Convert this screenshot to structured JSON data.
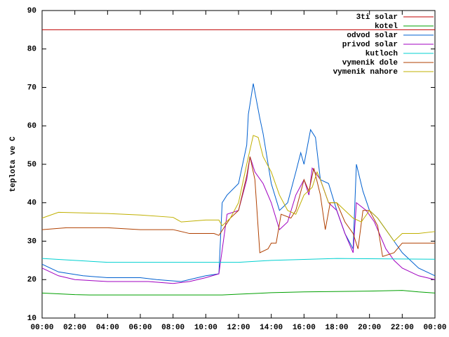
{
  "chart_data": {
    "type": "line",
    "ylabel": "teplota ve C",
    "xlim": [
      0,
      24
    ],
    "ylim": [
      10,
      90
    ],
    "yticks": [
      10,
      20,
      30,
      40,
      50,
      60,
      70,
      80,
      90
    ],
    "xticks": [
      {
        "value": 0,
        "label": "00:00"
      },
      {
        "value": 2,
        "label": "02:00"
      },
      {
        "value": 4,
        "label": "04:00"
      },
      {
        "value": 6,
        "label": "06:00"
      },
      {
        "value": 8,
        "label": "08:00"
      },
      {
        "value": 10,
        "label": "10:00"
      },
      {
        "value": 12,
        "label": "12:00"
      },
      {
        "value": 14,
        "label": "14:00"
      },
      {
        "value": 16,
        "label": "16:00"
      },
      {
        "value": 18,
        "label": "18:00"
      },
      {
        "value": 20,
        "label": "20:00"
      },
      {
        "value": 22,
        "label": "22:00"
      },
      {
        "value": 24,
        "label": "00:00"
      }
    ],
    "legend": "top-right",
    "series": [
      {
        "name": "3ti solar",
        "color": "#c00000",
        "x": [
          0,
          24
        ],
        "values": [
          85,
          85
        ]
      },
      {
        "name": "kotel",
        "color": "#00a000",
        "x": [
          0,
          1,
          2,
          3,
          11,
          12,
          13,
          14,
          16,
          20,
          22,
          23,
          24
        ],
        "values": [
          16.5,
          16.3,
          16.1,
          16,
          16,
          16.2,
          16.4,
          16.6,
          16.8,
          17,
          17.2,
          16.8,
          16.5
        ]
      },
      {
        "name": "odvod solar",
        "color": "#0060d0",
        "x": [
          0,
          1,
          2.5,
          4,
          6,
          7,
          8.5,
          9,
          10,
          10.8,
          11,
          11.3,
          12,
          12.5,
          12.6,
          12.9,
          13.3,
          13.5,
          14,
          14.5,
          15,
          15.5,
          15.8,
          16,
          16.4,
          16.7,
          17,
          17.5,
          18,
          18.5,
          19,
          19.2,
          19.6,
          20,
          20.5,
          21,
          21.5,
          22,
          23,
          24
        ],
        "values": [
          24,
          22,
          21,
          20.5,
          20.5,
          20,
          19.5,
          20,
          21,
          21.5,
          40,
          42,
          45,
          55,
          63,
          71,
          62,
          58,
          45,
          38,
          40,
          48,
          53,
          50,
          59,
          57,
          46,
          45,
          38,
          32,
          28,
          50,
          43,
          38,
          36,
          33,
          30,
          27,
          23,
          21
        ]
      },
      {
        "name": "privod solar",
        "color": "#a000c0",
        "x": [
          0,
          1,
          2,
          4,
          6.5,
          8,
          9,
          10,
          10.8,
          11.3,
          12,
          12.5,
          12.7,
          13,
          13.5,
          14,
          14.5,
          15,
          15.5,
          16,
          16.3,
          16.5,
          17,
          17.5,
          18,
          18.5,
          19,
          19.2,
          19.8,
          20.3,
          21,
          21.5,
          22,
          23,
          24
        ],
        "values": [
          23,
          21,
          20,
          19.5,
          19.5,
          19,
          19.5,
          20.5,
          21.5,
          37,
          38,
          46,
          52,
          48,
          45,
          40,
          33,
          35,
          42,
          46,
          42,
          49,
          46,
          40,
          38,
          32,
          27,
          40,
          38,
          35,
          28,
          25,
          23,
          21,
          20
        ]
      },
      {
        "name": "kutloch",
        "color": "#00d0d0",
        "x": [
          0,
          2,
          4,
          8,
          12,
          14,
          18,
          24
        ],
        "values": [
          25.5,
          25,
          24.5,
          24.5,
          24.5,
          25,
          25.5,
          25.3
        ]
      },
      {
        "name": "vymenik dole",
        "color": "#b04000",
        "x": [
          0,
          1.5,
          4,
          6,
          8,
          9,
          10.5,
          10.8,
          11.5,
          12,
          12.5,
          12.7,
          13,
          13.3,
          13.8,
          14,
          14.3,
          14.6,
          15.2,
          15.5,
          16,
          16.3,
          16.6,
          17,
          17.3,
          17.6,
          18,
          18.5,
          19,
          19.3,
          19.6,
          20,
          20.5,
          20.8,
          21.5,
          22,
          24
        ],
        "values": [
          33,
          33.5,
          33.5,
          33,
          33,
          32,
          32,
          31.5,
          36,
          38,
          47,
          52,
          46,
          27,
          28,
          29.5,
          29.5,
          37,
          36,
          38,
          46,
          43,
          49,
          42,
          33,
          40,
          40,
          35,
          32,
          28,
          38,
          38,
          34,
          26,
          27,
          29.5,
          29.5
        ]
      },
      {
        "name": "vymenik nahore",
        "color": "#c0b000",
        "x": [
          0,
          1,
          4,
          6,
          8,
          8.5,
          10,
          10.8,
          11,
          11.5,
          12,
          12.5,
          12.9,
          13.2,
          13.5,
          14,
          14.5,
          15,
          15.5,
          16,
          16.5,
          16.8,
          17,
          17.5,
          18,
          18.5,
          19,
          19.5,
          20,
          20.5,
          21,
          21.5,
          22,
          23,
          24
        ],
        "values": [
          36,
          37.5,
          37.2,
          36.8,
          36.2,
          35,
          35.5,
          35.5,
          34,
          36,
          40,
          50,
          57.5,
          57,
          52,
          48,
          42,
          38,
          37,
          42,
          44,
          48,
          46,
          40,
          40,
          38,
          36,
          35,
          38,
          36,
          33,
          30,
          32,
          32,
          32.5
        ]
      }
    ]
  }
}
